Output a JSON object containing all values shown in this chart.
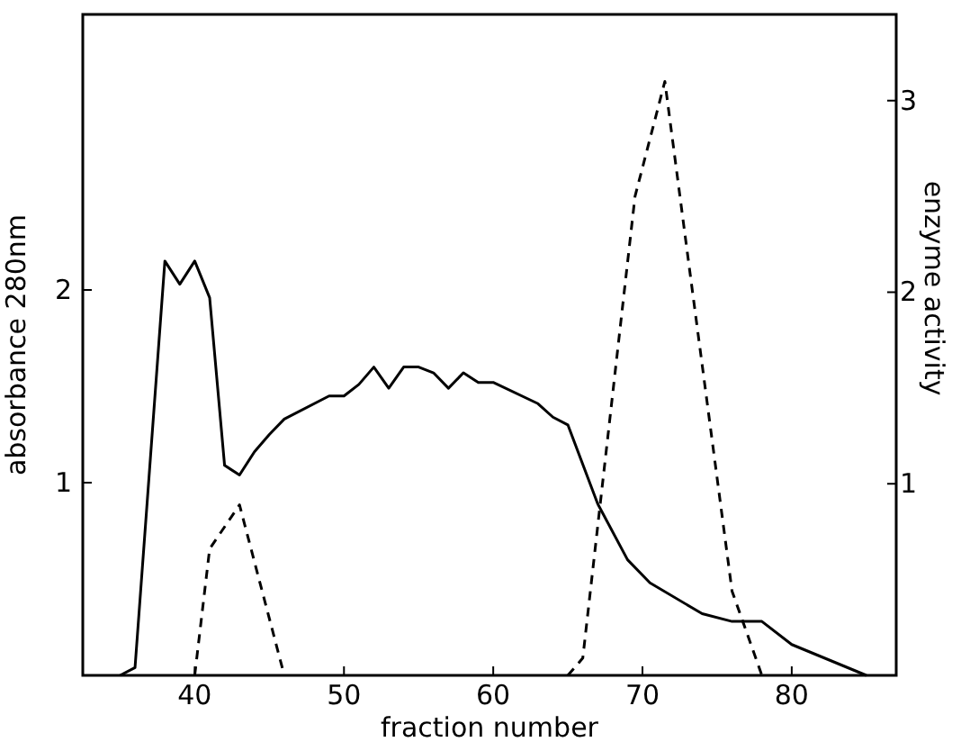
{
  "chart_data": {
    "type": "line",
    "xlabel": "fraction number",
    "ylabel": "absorbance 280nm",
    "y2label": "enzyme activity",
    "xlim": [
      32.5,
      87
    ],
    "xticks": [
      40,
      50,
      60,
      70,
      80
    ],
    "ylim": [
      0,
      3.43
    ],
    "yticks": [
      1,
      2
    ],
    "y2lim": [
      0,
      3.45
    ],
    "y2ticks": [
      1,
      2,
      3
    ],
    "grid": false,
    "marker": "none",
    "series": [
      {
        "color": "#000000",
        "line_style": "solid",
        "x": [
          35,
          36,
          38,
          39,
          40,
          41,
          42,
          43,
          44,
          45,
          46,
          49,
          50,
          51,
          52,
          53,
          54,
          55,
          56,
          57,
          58,
          59,
          60,
          63,
          64,
          65,
          67,
          69,
          70.5,
          74,
          76,
          78,
          80,
          85
        ],
        "values": [
          0,
          0.04,
          2.15,
          2.03,
          2.15,
          1.96,
          1.09,
          1.04,
          1.16,
          1.25,
          1.33,
          1.45,
          1.45,
          1.51,
          1.6,
          1.49,
          1.6,
          1.6,
          1.57,
          1.49,
          1.57,
          1.52,
          1.52,
          1.41,
          1.34,
          1.3,
          0.89,
          0.6,
          0.48,
          0.32,
          0.28,
          0.28,
          0.16,
          0
        ]
      },
      {
        "color": "#000000",
        "line_style": "dashed",
        "axis": "y2",
        "x": [
          40,
          41,
          43,
          46,
          55,
          65,
          66,
          69.5,
          71.5,
          73,
          76,
          78
        ],
        "values": [
          0,
          0.66,
          0.89,
          0,
          null,
          0,
          0.09,
          2.5,
          3.1,
          2.21,
          0.44,
          0
        ]
      }
    ]
  }
}
